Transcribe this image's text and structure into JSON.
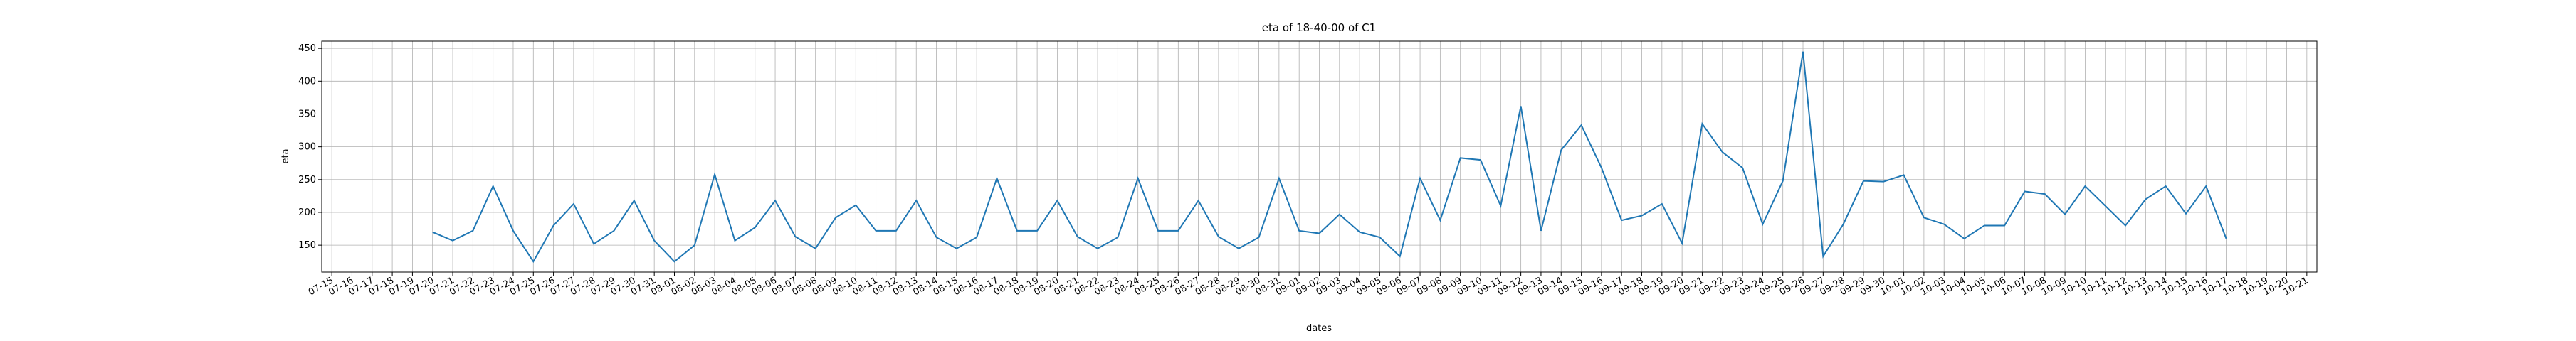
{
  "chart_data": {
    "type": "line",
    "title": "eta of 18-40-00 of C1",
    "x_label": "dates",
    "y_label": "eta",
    "categories": [
      "07-15",
      "07-16",
      "07-17",
      "07-18",
      "07-19",
      "07-20",
      "07-21",
      "07-22",
      "07-23",
      "07-24",
      "07-25",
      "07-26",
      "07-27",
      "07-28",
      "07-29",
      "07-30",
      "07-31",
      "08-01",
      "08-02",
      "08-03",
      "08-04",
      "08-05",
      "08-06",
      "08-07",
      "08-08",
      "08-09",
      "08-10",
      "08-11",
      "08-12",
      "08-13",
      "08-14",
      "08-15",
      "08-16",
      "08-17",
      "08-18",
      "08-19",
      "08-20",
      "08-21",
      "08-22",
      "08-23",
      "08-24",
      "08-25",
      "08-26",
      "08-27",
      "08-28",
      "08-29",
      "08-30",
      "08-31",
      "09-01",
      "09-02",
      "09-03",
      "09-04",
      "09-05",
      "09-06",
      "09-07",
      "09-08",
      "09-09",
      "09-10",
      "09-11",
      "09-12",
      "09-13",
      "09-14",
      "09-15",
      "09-16",
      "09-17",
      "09-18",
      "09-19",
      "09-20",
      "09-21",
      "09-22",
      "09-23",
      "09-24",
      "09-25",
      "09-26",
      "09-27",
      "09-28",
      "09-29",
      "09-30",
      "10-01",
      "10-02",
      "10-03",
      "10-04",
      "10-05",
      "10-06",
      "10-07",
      "10-08",
      "10-09",
      "10-10",
      "10-11",
      "10-12",
      "10-13",
      "10-14",
      "10-15",
      "10-16",
      "10-17",
      "10-18",
      "10-19",
      "10-20",
      "10-21"
    ],
    "series": [
      {
        "color": "#1f77b4",
        "values": [
          null,
          null,
          null,
          null,
          null,
          170,
          157,
          172,
          240,
          172,
          125,
          180,
          213,
          152,
          172,
          218,
          157,
          125,
          150,
          258,
          157,
          177,
          218,
          163,
          145,
          192,
          211,
          172,
          172,
          218,
          162,
          145,
          162,
          252,
          172,
          172,
          218,
          163,
          145,
          162,
          252,
          172,
          172,
          218,
          163,
          145,
          162,
          252,
          172,
          168,
          197,
          170,
          162,
          133,
          252,
          188,
          283,
          280,
          210,
          362,
          172,
          295,
          333,
          268,
          188,
          195,
          213,
          153,
          335,
          292,
          268,
          182,
          248,
          445,
          133,
          182,
          248,
          247,
          257,
          192,
          182,
          160,
          180,
          180,
          232,
          228,
          197,
          240,
          210,
          180,
          220,
          240,
          198,
          240,
          160,
          null,
          null,
          null,
          null
        ]
      }
    ],
    "ylim": [
      109,
      461
    ],
    "yticks": [
      150,
      200,
      250,
      300,
      350,
      400,
      450
    ],
    "grid": true
  }
}
